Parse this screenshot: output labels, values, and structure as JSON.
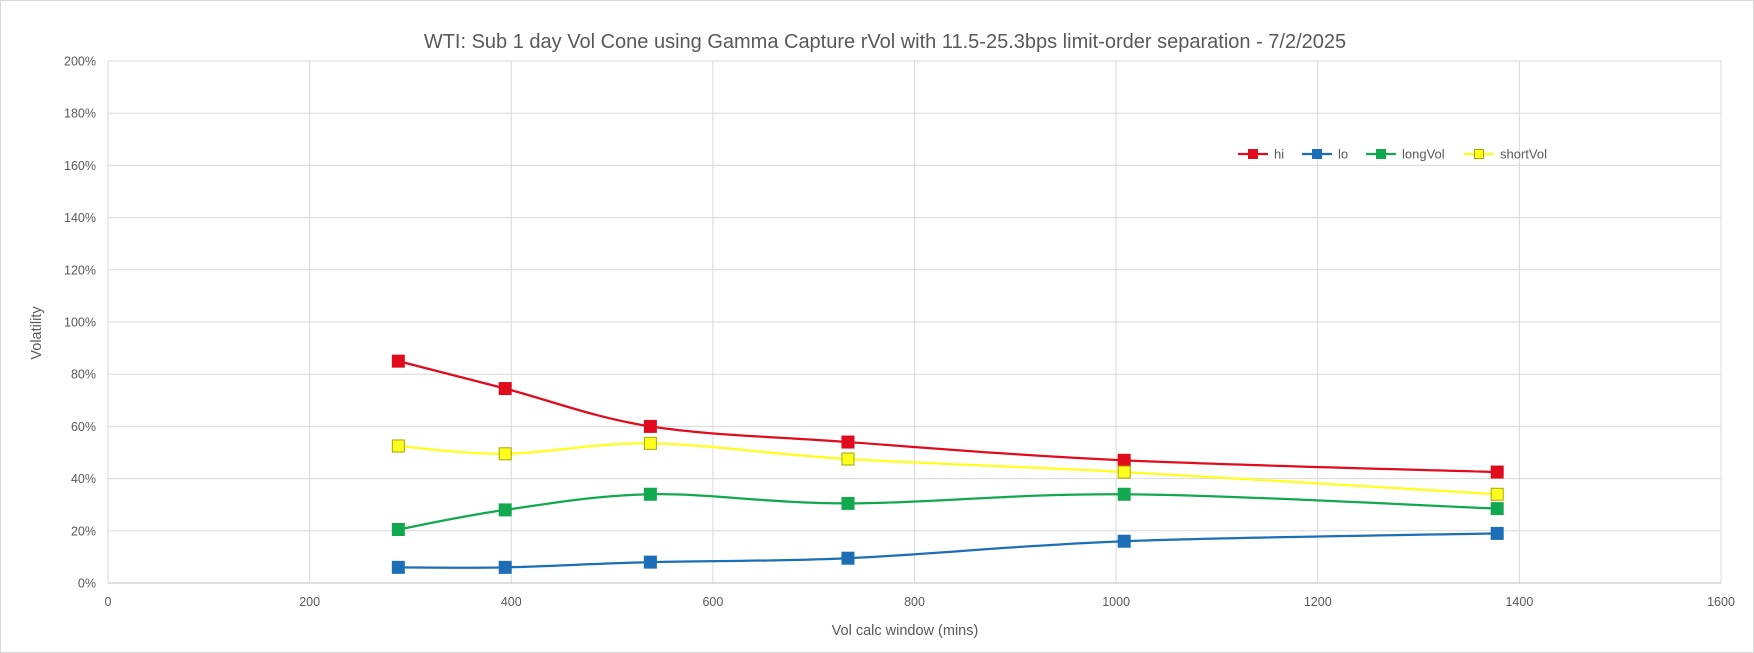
{
  "chart_data": {
    "type": "line",
    "smooth": true,
    "title": "WTI: Sub 1 day Vol Cone using Gamma Capture rVol with 11.5-25.3bps limit-order separation - 7/2/2025",
    "xlabel": "Vol calc window (mins)",
    "ylabel": "Volatility",
    "xlim": [
      0,
      1600
    ],
    "ylim": [
      0,
      2.0
    ],
    "x_ticks": [
      0,
      200,
      400,
      600,
      800,
      1000,
      1200,
      1400,
      1600
    ],
    "x_tick_labels": [
      "0",
      "200",
      "400",
      "600",
      "800",
      "1000",
      "1200",
      "1400",
      "1600"
    ],
    "y_ticks": [
      0,
      0.2,
      0.4,
      0.6,
      0.8,
      1.0,
      1.2,
      1.4,
      1.6,
      1.8,
      2.0
    ],
    "y_tick_labels": [
      "0%",
      "20%",
      "40%",
      "60%",
      "80%",
      "100%",
      "120%",
      "140%",
      "160%",
      "180%",
      "200%"
    ],
    "grid": true,
    "legend": "top-right",
    "x": [
      288,
      394,
      538,
      734,
      1008,
      1378
    ],
    "series": [
      {
        "name": "hi",
        "color": "#e00b1c",
        "values": [
          0.85,
          0.745,
          0.6,
          0.54,
          0.47,
          0.425
        ]
      },
      {
        "name": "lo",
        "color": "#1c6eb7",
        "values": [
          0.06,
          0.06,
          0.08,
          0.095,
          0.16,
          0.19
        ]
      },
      {
        "name": "longVol",
        "color": "#12a84f",
        "values": [
          0.205,
          0.28,
          0.34,
          0.305,
          0.34,
          0.285
        ]
      },
      {
        "name": "shortVol",
        "color": "#ffff1e",
        "marker_edge": "#a6a600",
        "values": [
          0.525,
          0.495,
          0.535,
          0.475,
          0.425,
          0.34
        ]
      }
    ]
  }
}
